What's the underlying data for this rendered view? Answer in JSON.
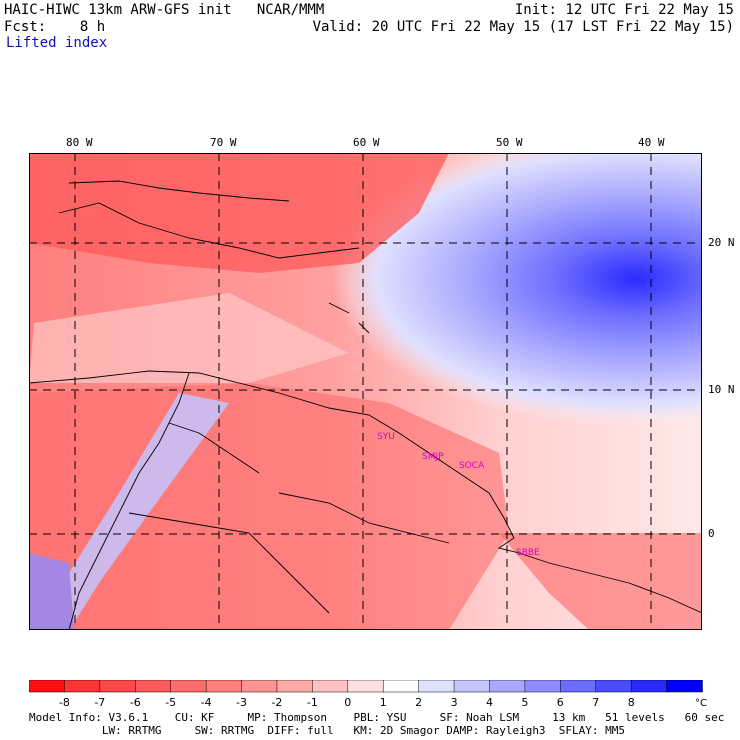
{
  "header": {
    "title_left": "HAIC-HIWC 13km ARW-GFS init   NCAR/MMM",
    "fcst_label": "Fcst:    8 h",
    "init": "Init: 12 UTC Fri 22 May 15",
    "valid": "Valid: 20 UTC Fri 22 May 15 (17 LST Fri 22 May 15)",
    "field": "Lifted index"
  },
  "map": {
    "lon_labels": [
      "80 W",
      "70 W",
      "60 W",
      "50 W",
      "40 W"
    ],
    "lat_labels": [
      "20 N",
      "10 N",
      "0"
    ],
    "stations": [
      "SYU",
      "SMJP",
      "SOCA",
      "SBBE"
    ],
    "colors": {
      "land_outline": "#000000",
      "grid": "#000000"
    }
  },
  "colorbar": {
    "ticks": [
      "-8",
      "-7",
      "-6",
      "-5",
      "-4",
      "-3",
      "-2",
      "-1",
      "0",
      "1",
      "2",
      "3",
      "4",
      "5",
      "6",
      "7",
      "8"
    ],
    "unit": "°C",
    "colors": [
      "#ff1010",
      "#ff3434",
      "#ff4848",
      "#ff5a5a",
      "#ff6c6c",
      "#ff7e7e",
      "#ff9292",
      "#ffa8a8",
      "#ffc2c2",
      "#ffe0e0",
      "#ffffff",
      "#e0e0ff",
      "#c4c4ff",
      "#a8a8ff",
      "#8c8cff",
      "#6c6cff",
      "#4c4cff",
      "#2a2aff",
      "#0000ff"
    ]
  },
  "footer": {
    "line1": "Model Info: V3.6.1    CU: KF     MP: Thompson    PBL: YSU     SF: Noah LSM     13 km   51 levels   60 sec",
    "line2": "           LW: RRTMG     SW: RRTMG  DIFF: full   KM: 2D Smagor DAMP: Rayleigh3  SFLAY: MM5"
  }
}
